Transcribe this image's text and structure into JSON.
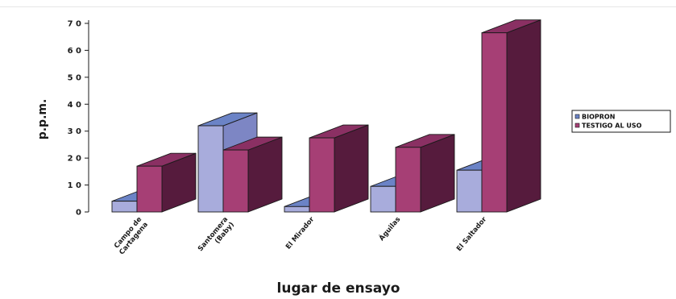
{
  "chart_data": {
    "type": "bar",
    "categories": [
      "Campo de\nCartagena",
      "Santomera\n(Baby)",
      "El Mirador",
      "Águilas",
      "El Saltador"
    ],
    "series": [
      {
        "name": "BIOPRON",
        "values": [
          4,
          32,
          2,
          9.5,
          15.5
        ]
      },
      {
        "name": "TESTIGO AL USO",
        "values": [
          17,
          23,
          27.5,
          24,
          66.5
        ]
      }
    ],
    "yticks": [
      "0",
      "1 0",
      "2 0",
      "3 0",
      "4 0",
      "5 0",
      "6 0",
      "7 0"
    ],
    "ylim": [
      0,
      70
    ],
    "xlabel": "lugar de ensayo",
    "ylabel": "p.p.m.",
    "legend_position": "right",
    "grid": false,
    "colors": {
      "biopron_front": "#a8acdc",
      "biopron_top": "#6b83c6",
      "biopron_side": "#7d86c4",
      "testigo_front": "#a63f75",
      "testigo_top": "#8a3063",
      "testigo_side": "#561b3d",
      "edge": "#1a1a1a"
    }
  }
}
